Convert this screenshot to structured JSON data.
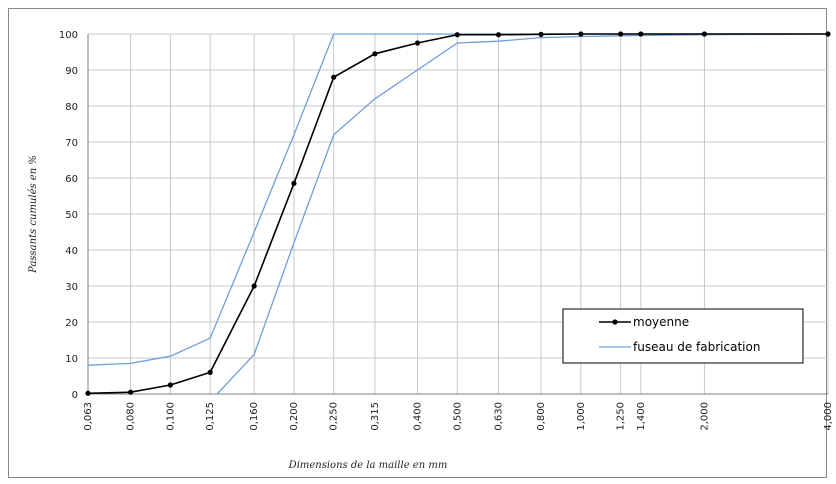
{
  "chart_data": {
    "type": "line",
    "xlabel": "Dimensions de la maille en mm",
    "ylabel": "Passants cumulés en %",
    "ylim": [
      0,
      100
    ],
    "y_ticks": [
      0,
      10,
      20,
      30,
      40,
      50,
      60,
      70,
      80,
      90,
      100
    ],
    "x_scale": "log",
    "x_tick_labels": [
      "0,063",
      "0,080",
      "0,100",
      "0,125",
      "0,160",
      "0,200",
      "0,250",
      "0,315",
      "0,400",
      "0,500",
      "0,630",
      "0,800",
      "1,000",
      "1,250",
      "1,400",
      "2,000",
      "4,000"
    ],
    "x_ticks": [
      0.063,
      0.08,
      0.1,
      0.125,
      0.16,
      0.2,
      0.25,
      0.315,
      0.4,
      0.5,
      0.63,
      0.8,
      1.0,
      1.25,
      1.4,
      2.0,
      4.0
    ],
    "grid": true,
    "legend_position": "bottom-right",
    "series": [
      {
        "name": "moyenne",
        "color": "#000000",
        "markers": true,
        "points": [
          [
            0.063,
            0.2
          ],
          [
            0.08,
            0.5
          ],
          [
            0.1,
            2.5
          ],
          [
            0.125,
            6
          ],
          [
            0.16,
            30
          ],
          [
            0.2,
            58.5
          ],
          [
            0.25,
            88
          ],
          [
            0.315,
            94.5
          ],
          [
            0.4,
            97.5
          ],
          [
            0.5,
            99.8
          ],
          [
            0.63,
            99.8
          ],
          [
            0.8,
            99.9
          ],
          [
            1.0,
            100
          ],
          [
            1.25,
            100
          ],
          [
            1.4,
            100
          ],
          [
            2.0,
            100
          ],
          [
            4.0,
            100
          ]
        ]
      },
      {
        "name": "fuseau de fabrication",
        "color": "#6f9fd8",
        "markers": false,
        "points": [
          [
            0.063,
            8
          ],
          [
            0.08,
            8.5
          ],
          [
            0.1,
            10.5
          ],
          [
            0.125,
            15.5
          ],
          [
            0.16,
            45
          ],
          [
            0.2,
            72
          ],
          [
            0.25,
            100
          ],
          [
            4.0,
            100
          ]
        ]
      },
      {
        "name": "",
        "color": "#6f9fd8",
        "markers": false,
        "points": [
          [
            0.13,
            0
          ],
          [
            0.16,
            11
          ],
          [
            0.2,
            42
          ],
          [
            0.25,
            72
          ],
          [
            0.315,
            82
          ],
          [
            0.4,
            90
          ],
          [
            0.5,
            97.5
          ],
          [
            0.63,
            98
          ],
          [
            0.8,
            99
          ],
          [
            1.0,
            99.3
          ],
          [
            1.25,
            99.5
          ],
          [
            1.4,
            99.6
          ],
          [
            2.0,
            99.8
          ],
          [
            4.0,
            100
          ]
        ]
      }
    ]
  }
}
